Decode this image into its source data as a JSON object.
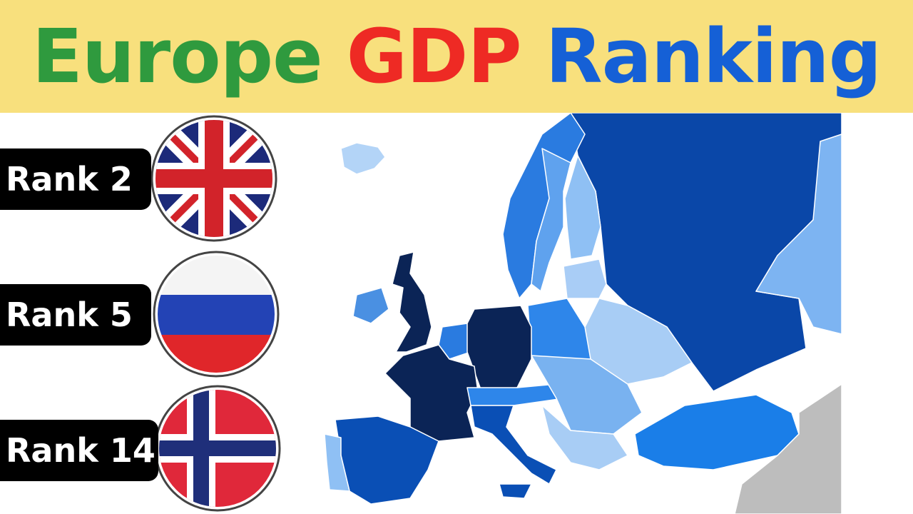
{
  "header": {
    "title": [
      "Europe",
      "GDP",
      "Ranking"
    ]
  },
  "ranks": [
    {
      "label": "Rank 2"
    },
    {
      "label": "Rank 5"
    },
    {
      "label": "Rank 14"
    }
  ]
}
